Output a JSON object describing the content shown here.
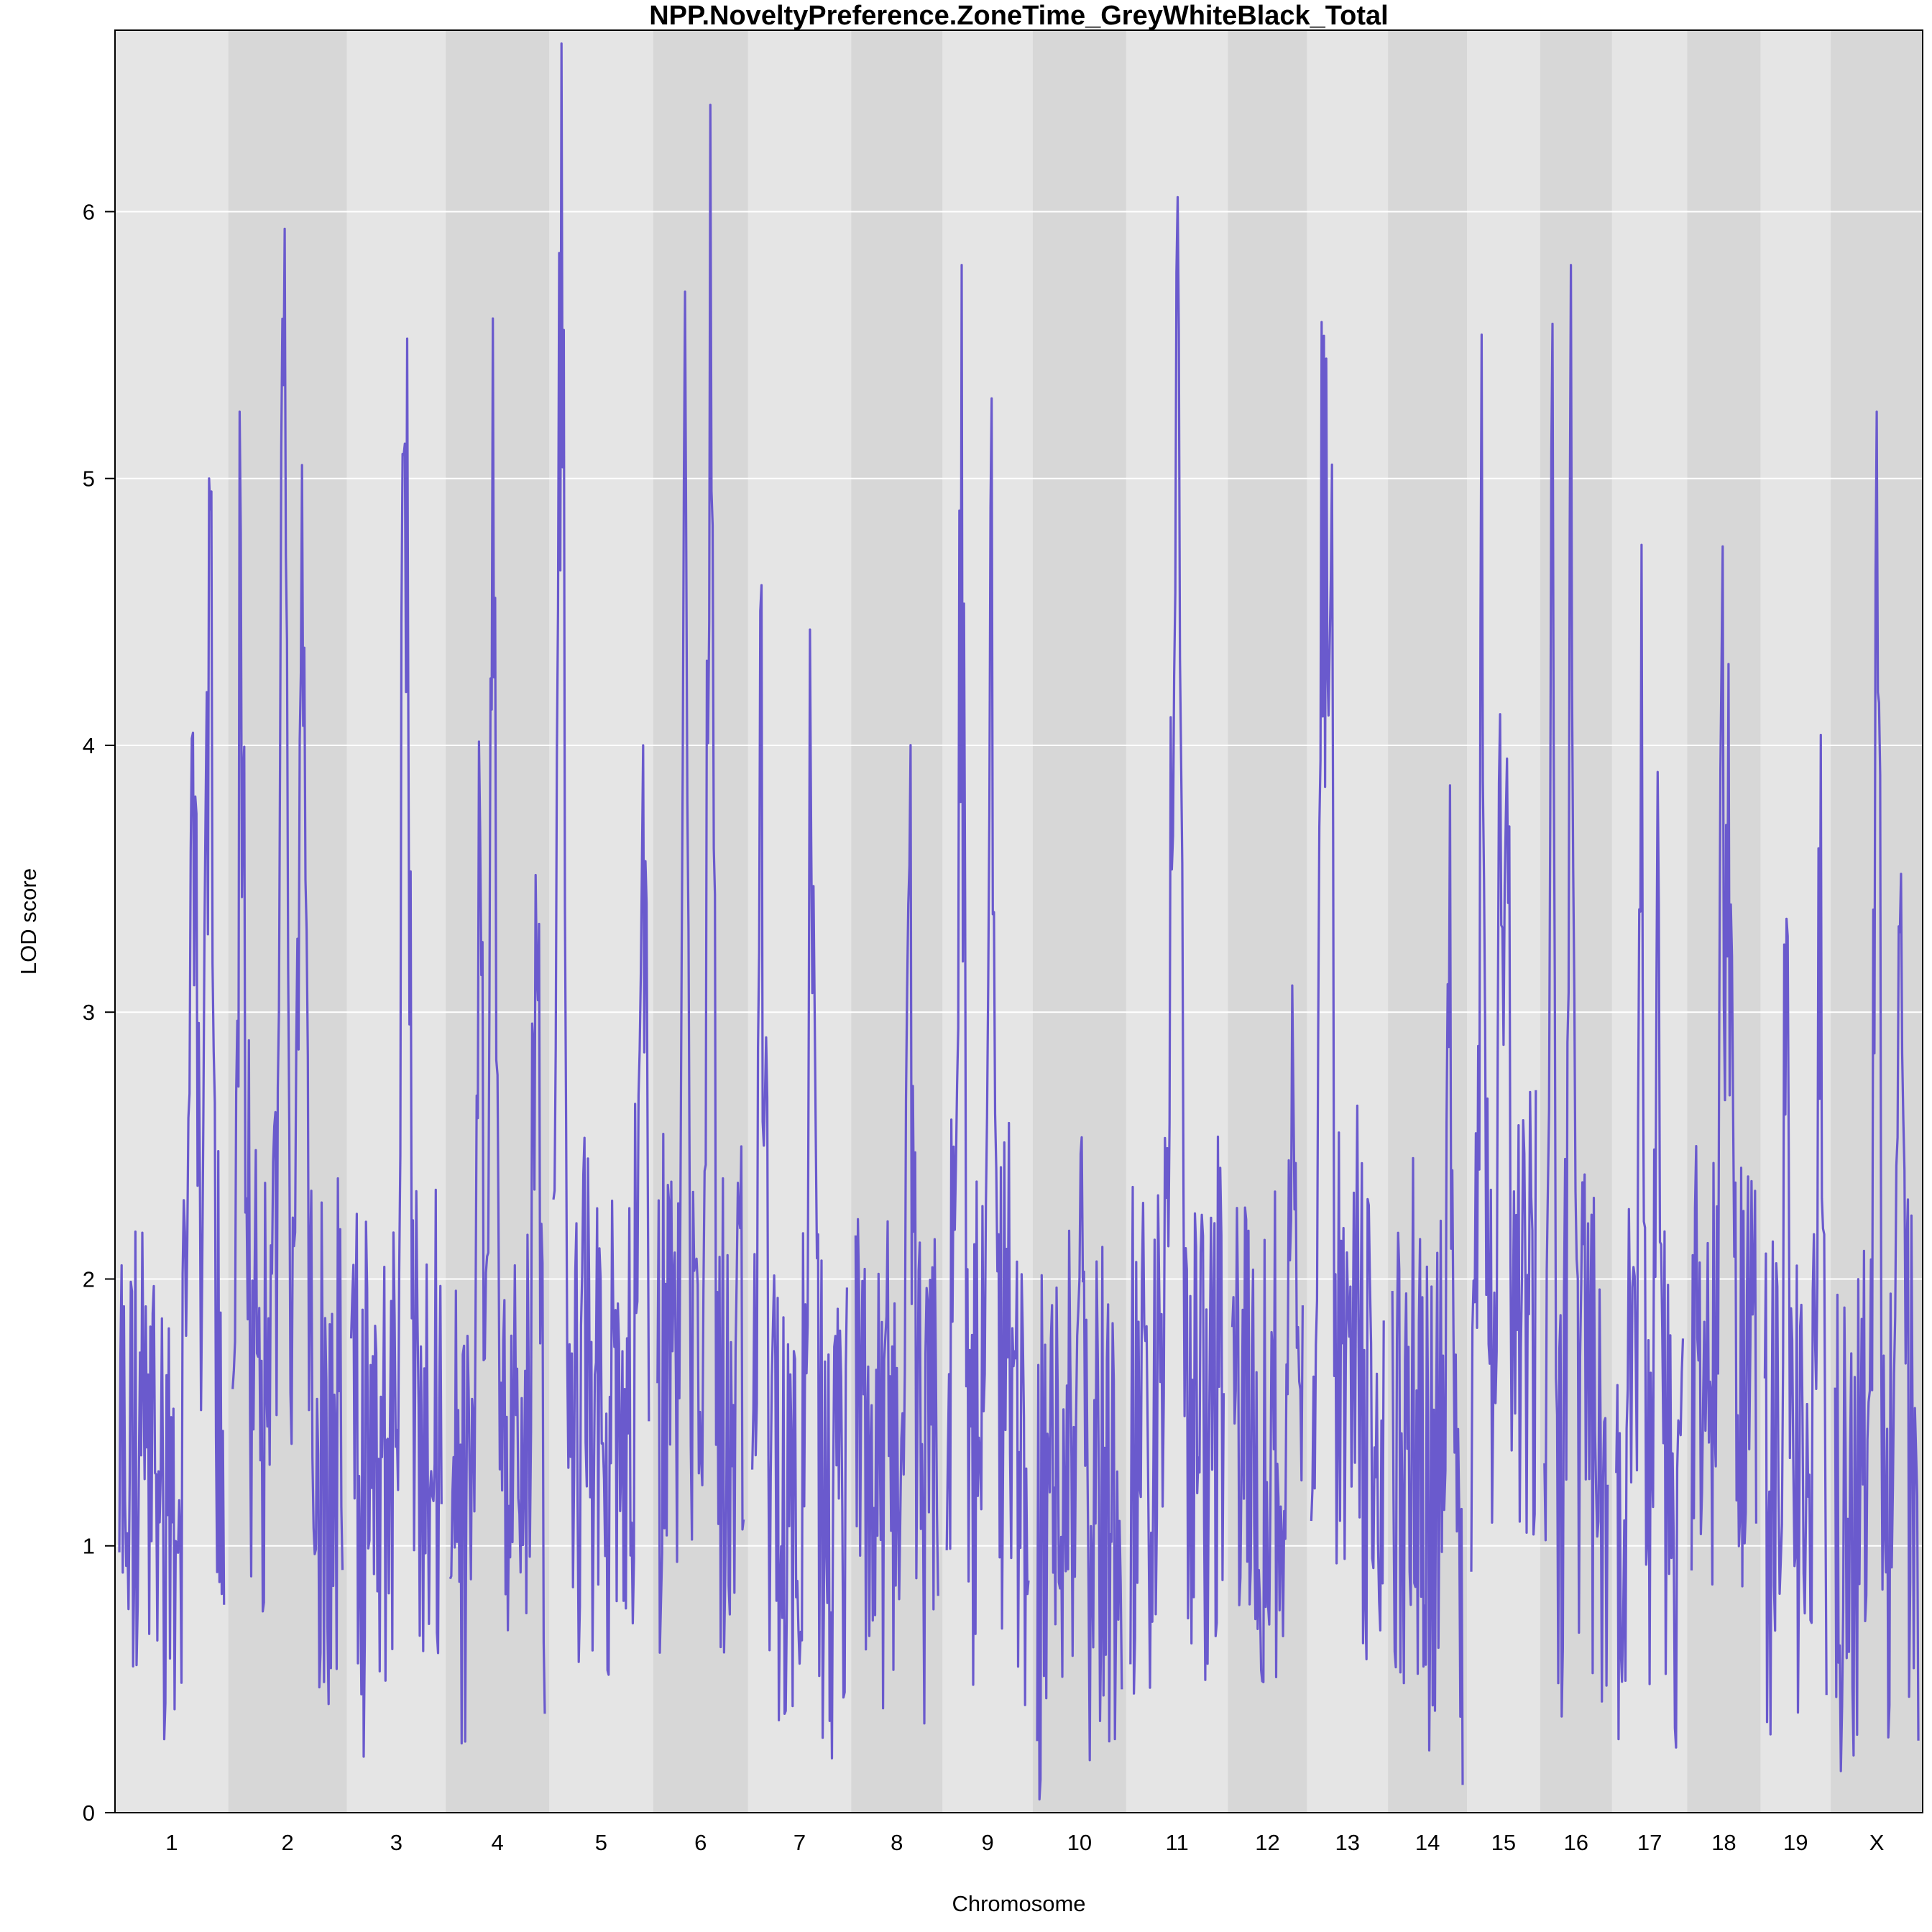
{
  "chart_data": {
    "type": "line",
    "title": "NPP.NoveltyPreference.ZoneTime_GreyWhiteBlack_Total",
    "xlabel": "Chromosome",
    "ylabel": "LOD score",
    "ylim": [
      0,
      6.68
    ],
    "yticks": [
      0,
      1,
      2,
      3,
      4,
      5,
      6
    ],
    "grid": true,
    "legend": "none",
    "colors": {
      "line": "#6a5acd",
      "band_light": "#e5e5e5",
      "band_dark": "#d7d7d7",
      "grid": "#ffffff"
    },
    "chromosomes": [
      {
        "name": "1",
        "baseline": 1.3,
        "peaks": [
          [
            0.72,
            4.5
          ],
          [
            0.86,
            5.0
          ]
        ]
      },
      {
        "name": "2",
        "baseline": 1.6,
        "peaks": [
          [
            0.07,
            4.8
          ],
          [
            0.46,
            5.35
          ],
          [
            0.63,
            5.05
          ]
        ]
      },
      {
        "name": "3",
        "baseline": 1.4,
        "peaks": [
          [
            0.6,
            6.0
          ],
          [
            0.61,
            4.2
          ]
        ]
      },
      {
        "name": "4",
        "baseline": 1.2,
        "peaks": [
          [
            0.45,
            5.6
          ],
          [
            0.31,
            3.85
          ],
          [
            0.91,
            4.0
          ]
        ]
      },
      {
        "name": "5",
        "baseline": 1.5,
        "peaks": [
          [
            0.08,
            6.55
          ],
          [
            0.94,
            4.0
          ]
        ]
      },
      {
        "name": "6",
        "baseline": 1.5,
        "peaks": [
          [
            0.32,
            5.7
          ],
          [
            0.61,
            6.4
          ]
        ]
      },
      {
        "name": "7",
        "baseline": 1.2,
        "peaks": [
          [
            0.1,
            4.6
          ],
          [
            0.62,
            3.65
          ]
        ]
      },
      {
        "name": "8",
        "baseline": 1.3,
        "peaks": [
          [
            0.65,
            3.55
          ]
        ]
      },
      {
        "name": "9",
        "baseline": 1.5,
        "peaks": [
          [
            0.18,
            5.8
          ],
          [
            0.55,
            5.3
          ]
        ]
      },
      {
        "name": "10",
        "baseline": 1.2,
        "peaks": [
          [
            0.52,
            3.15
          ]
        ]
      },
      {
        "name": "11",
        "baseline": 1.4,
        "peaks": [
          [
            0.45,
            4.7
          ],
          [
            0.52,
            5.55
          ]
        ]
      },
      {
        "name": "12",
        "baseline": 1.4,
        "peaks": [
          [
            0.85,
            3.1
          ]
        ]
      },
      {
        "name": "13",
        "baseline": 1.6,
        "peaks": [
          [
            0.14,
            5.25
          ],
          [
            0.2,
            5.2
          ],
          [
            0.26,
            4.95
          ]
        ]
      },
      {
        "name": "14",
        "baseline": 1.3,
        "peaks": [
          [
            0.82,
            3.85
          ]
        ]
      },
      {
        "name": "15",
        "baseline": 1.9,
        "peaks": [
          [
            0.17,
            5.25
          ],
          [
            0.45,
            4.1
          ],
          [
            0.55,
            3.95
          ]
        ]
      },
      {
        "name": "16",
        "baseline": 1.5,
        "peaks": [
          [
            0.12,
            5.2
          ],
          [
            0.42,
            5.8
          ]
        ]
      },
      {
        "name": "17",
        "baseline": 1.2,
        "peaks": [
          [
            0.37,
            4.8
          ],
          [
            0.62,
            3.9
          ]
        ]
      },
      {
        "name": "18",
        "baseline": 1.6,
        "peaks": [
          [
            0.47,
            4.8
          ],
          [
            0.58,
            4.3
          ]
        ]
      },
      {
        "name": "19",
        "baseline": 1.3,
        "peaks": [
          [
            0.35,
            3.35
          ],
          [
            0.9,
            3.75
          ]
        ]
      },
      {
        "name": "X",
        "baseline": 1.2,
        "peaks": [
          [
            0.5,
            5.25
          ],
          [
            0.78,
            3.3
          ]
        ]
      }
    ]
  }
}
